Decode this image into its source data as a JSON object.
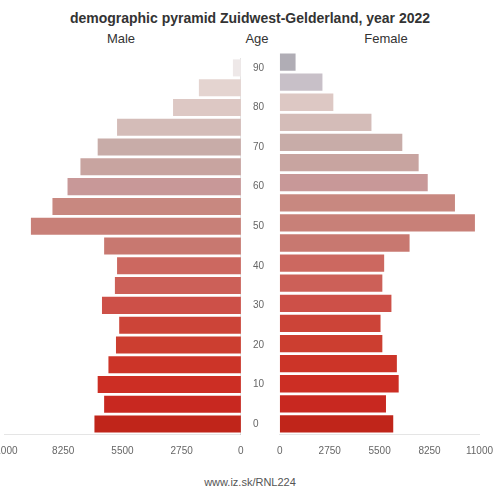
{
  "chart_data": {
    "type": "bar",
    "orientation": "horizontal",
    "title": "demographic pyramid Zuidwest-Gelderland, year 2022",
    "annotations": [
      "www.iz.sk/RNL224"
    ],
    "ylabel": "Age",
    "categories": [
      "0",
      null,
      "10",
      null,
      "20",
      null,
      "30",
      null,
      "40",
      null,
      "50",
      null,
      "60",
      null,
      "70",
      null,
      "80",
      null,
      "90"
    ],
    "series": [
      {
        "name": "Male",
        "values": [
          6800,
          6350,
          6650,
          6150,
          5800,
          5650,
          6450,
          5850,
          5750,
          6350,
          9750,
          8750,
          8050,
          7450,
          6650,
          5750,
          3150,
          1950,
          370
        ],
        "colors": [
          "#c0251a",
          "#c82820",
          "#cc2e24",
          "#cc3428",
          "#cc3e30",
          "#cc4438",
          "#cd5048",
          "#cc6058",
          "#cc6860",
          "#c87870",
          "#c88078",
          "#c88880",
          "#c89898",
          "#c8a4a0",
          "#c8aca8",
          "#d4bcb8",
          "#ddc8c4",
          "#e4d4d0",
          "#eee8e8"
        ]
      },
      {
        "name": "Female",
        "values": [
          6250,
          5850,
          6550,
          6450,
          5650,
          5550,
          6150,
          5650,
          5750,
          7150,
          10750,
          9650,
          8150,
          7650,
          6750,
          5050,
          2950,
          2350,
          870
        ],
        "colors": [
          "#c0251a",
          "#c82820",
          "#cc2e24",
          "#cc3428",
          "#cc3e30",
          "#cc4438",
          "#cd5048",
          "#cc6058",
          "#cc6860",
          "#c87870",
          "#c88078",
          "#c88880",
          "#c89898",
          "#c8a4a0",
          "#c8aca8",
          "#d4bcb8",
          "#ddc8c4",
          "#c8c0c8",
          "#b0adb5"
        ]
      }
    ],
    "xlim": [
      0,
      11000
    ],
    "xticks": [
      0,
      2750,
      5500,
      8250,
      11000
    ],
    "grid": false
  }
}
